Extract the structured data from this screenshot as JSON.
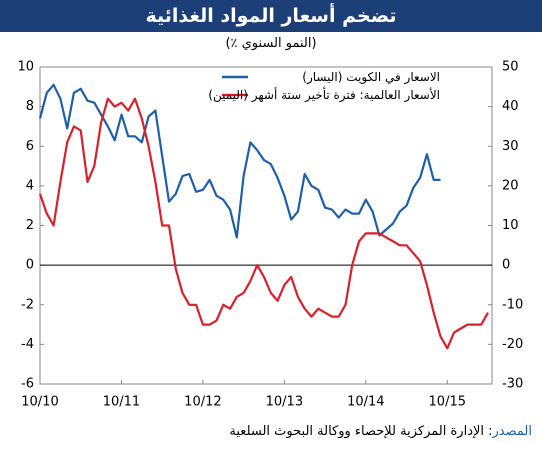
{
  "chart_data": {
    "type": "line",
    "title": "تضخم أسعار المواد الغذائية",
    "subtitle": "(النمو السنوي ٪)",
    "source_label": "المصدر",
    "source": ": الإدارة المركزية للإحصاء ووكالة البحوث السلعية",
    "x": [
      "10/10",
      "11/10",
      "12/10",
      "01/11",
      "02/11",
      "03/11",
      "04/11",
      "05/11",
      "06/11",
      "07/11",
      "08/11",
      "09/11",
      "10/11",
      "11/11",
      "12/11",
      "01/12",
      "02/12",
      "03/12",
      "04/12",
      "05/12",
      "06/12",
      "07/12",
      "08/12",
      "09/12",
      "10/12",
      "11/12",
      "12/12",
      "01/13",
      "02/13",
      "03/13",
      "04/13",
      "05/13",
      "06/13",
      "07/13",
      "08/13",
      "09/13",
      "10/13",
      "11/13",
      "12/13",
      "01/14",
      "02/14",
      "03/14",
      "04/14",
      "05/14",
      "06/14",
      "07/14",
      "08/14",
      "09/14",
      "10/14",
      "11/14",
      "12/14",
      "01/15",
      "02/15",
      "03/15",
      "04/15",
      "05/15",
      "06/15",
      "07/15",
      "08/15",
      "09/15",
      "10/15",
      "11/15",
      "12/15",
      "01/16",
      "02/16",
      "03/16",
      "04/16"
    ],
    "xlim": [
      "10/10",
      "04/16"
    ],
    "xticks": [
      "10/10",
      "10/11",
      "10/12",
      "10/13",
      "10/14",
      "10/15"
    ],
    "ylim": [
      -6,
      10
    ],
    "yticks": [
      -6,
      -4,
      -2,
      0,
      2,
      4,
      6,
      8,
      10
    ],
    "y2lim": [
      -30,
      50
    ],
    "y2ticks": [
      -30,
      -20,
      -10,
      0,
      10,
      20,
      30,
      40,
      50
    ],
    "grid": false,
    "series": [
      {
        "name": "الاسعار في الكويت (اليسار)",
        "color": "#1f5fa8",
        "axis": "y",
        "values": [
          7.4,
          8.7,
          9.1,
          8.4,
          6.9,
          8.7,
          8.9,
          8.3,
          8.2,
          7.6,
          7.0,
          6.3,
          7.6,
          6.5,
          6.5,
          6.2,
          7.5,
          7.8,
          5.5,
          3.2,
          3.6,
          4.5,
          4.6,
          3.7,
          3.8,
          4.3,
          3.5,
          3.3,
          2.8,
          1.4,
          4.5,
          6.2,
          5.8,
          5.3,
          5.1,
          4.4,
          3.5,
          2.3,
          2.7,
          4.6,
          4.0,
          3.8,
          2.9,
          2.8,
          2.4,
          2.8,
          2.6,
          2.6,
          3.3,
          2.7,
          1.5,
          1.8,
          2.1,
          2.7,
          3.0,
          3.9,
          4.4,
          5.6,
          4.3,
          4.3,
          null,
          null,
          null,
          null,
          null,
          null,
          null
        ]
      },
      {
        "name": "الأسعار العالمية: فترة تأخير ستة أشهر (اليمين)",
        "color": "#d9202a",
        "axis": "y2",
        "values": [
          18,
          13,
          10,
          21,
          31,
          35,
          34,
          21,
          25,
          36,
          42,
          40,
          41,
          39,
          42,
          37,
          30,
          21,
          10,
          10,
          -1,
          -7,
          -10,
          -10,
          -15,
          -15,
          -14,
          -10,
          -11,
          -8,
          -7,
          -4,
          0,
          -3,
          -7,
          -9,
          -5,
          -3,
          -8,
          -11,
          -13,
          -11,
          -12,
          -13,
          -13,
          -10,
          0,
          6,
          8,
          8,
          8,
          7,
          6,
          5,
          5,
          3,
          1,
          -5,
          -12,
          -18,
          -21,
          -17,
          -16,
          -15,
          -15,
          -15,
          -12
        ]
      }
    ]
  }
}
